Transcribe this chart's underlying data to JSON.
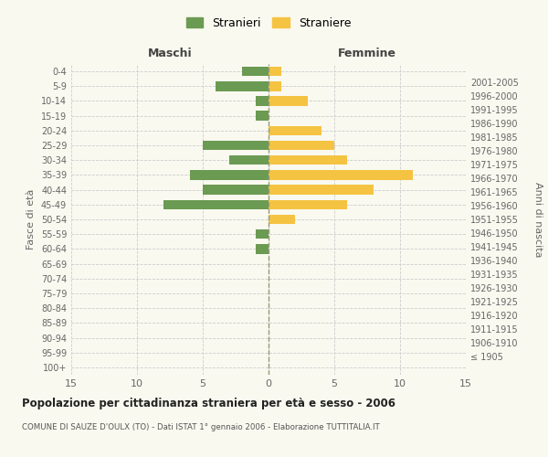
{
  "age_groups": [
    "100+",
    "95-99",
    "90-94",
    "85-89",
    "80-84",
    "75-79",
    "70-74",
    "65-69",
    "60-64",
    "55-59",
    "50-54",
    "45-49",
    "40-44",
    "35-39",
    "30-34",
    "25-29",
    "20-24",
    "15-19",
    "10-14",
    "5-9",
    "0-4"
  ],
  "birth_years": [
    "≤ 1905",
    "1906-1910",
    "1911-1915",
    "1916-1920",
    "1921-1925",
    "1926-1930",
    "1931-1935",
    "1936-1940",
    "1941-1945",
    "1946-1950",
    "1951-1955",
    "1956-1960",
    "1961-1965",
    "1966-1970",
    "1971-1975",
    "1976-1980",
    "1981-1985",
    "1986-1990",
    "1991-1995",
    "1996-2000",
    "2001-2005"
  ],
  "males": [
    0,
    0,
    0,
    0,
    0,
    0,
    0,
    0,
    1,
    1,
    0,
    8,
    5,
    6,
    3,
    5,
    0,
    1,
    1,
    4,
    2
  ],
  "females": [
    0,
    0,
    0,
    0,
    0,
    0,
    0,
    0,
    0,
    0,
    2,
    6,
    8,
    11,
    6,
    5,
    4,
    0,
    3,
    1,
    1
  ],
  "male_color": "#6b9a52",
  "female_color": "#f5c342",
  "title": "Popolazione per cittadinanza straniera per età e sesso - 2006",
  "subtitle": "COMUNE DI SAUZE D'OULX (TO) - Dati ISTAT 1° gennaio 2006 - Elaborazione TUTTITALIA.IT",
  "ylabel_left": "Fasce di età",
  "ylabel_right": "Anni di nascita",
  "xlabel_left": "Maschi",
  "xlabel_right": "Femmine",
  "legend_males": "Stranieri",
  "legend_females": "Straniere",
  "xlim": 15,
  "background_color": "#f9f9f0",
  "grid_color": "#cccccc"
}
